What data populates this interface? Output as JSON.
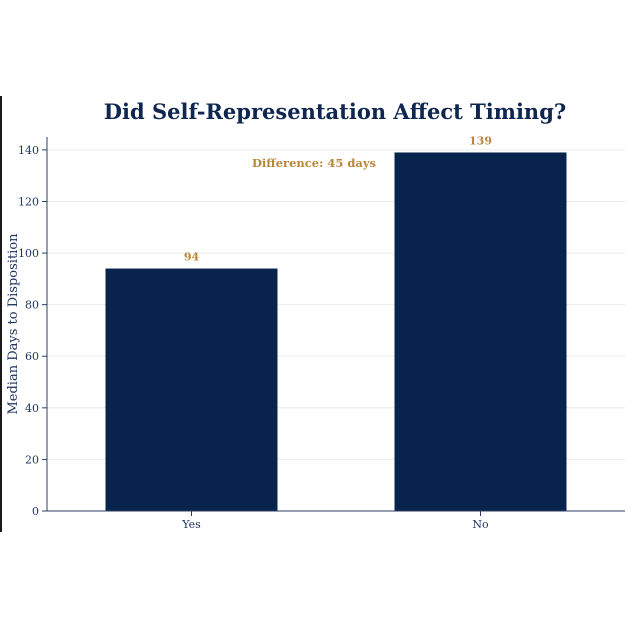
{
  "chart_data": {
    "type": "bar",
    "title": "Did Self-Representation Affect Timing?",
    "xlabel": "",
    "ylabel": "Median Days to Disposition",
    "categories": [
      "Yes",
      "No"
    ],
    "values": [
      94,
      139
    ],
    "data_labels": [
      "94",
      "139"
    ],
    "ylim": [
      0,
      145
    ],
    "yticks": [
      0,
      20,
      40,
      60,
      80,
      100,
      120,
      140
    ],
    "grid": true,
    "legend": "none",
    "annotation": "Difference: 45 days",
    "colors": {
      "bar": "#08244d",
      "label": "#b8863b",
      "title": "#0f2750",
      "axis": "#2c3e66",
      "grid": "#ebebeb"
    }
  }
}
